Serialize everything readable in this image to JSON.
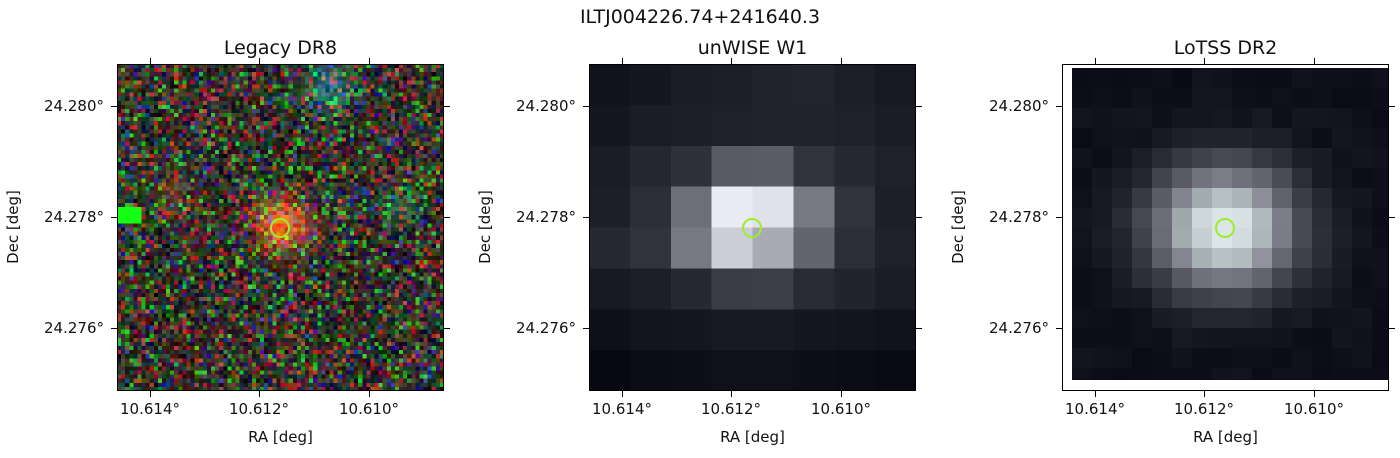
{
  "figure_title": "ILTJ004226.74+241640.3",
  "axes": {
    "xlabel": "RA [deg]",
    "ylabel": "Dec [deg]",
    "xticks": [
      "10.614°",
      "10.612°",
      "10.610°"
    ],
    "yticks": [
      "24.280°",
      "24.278°",
      "24.276°"
    ]
  },
  "panels": [
    {
      "title": "Legacy DR8",
      "kind": "optical-rgb"
    },
    {
      "title": "unWISE W1",
      "kind": "infrared-grayscale"
    },
    {
      "title": "LoTSS DR2",
      "kind": "radio-grayscale"
    }
  ],
  "marker_color": "#9bee2a"
}
